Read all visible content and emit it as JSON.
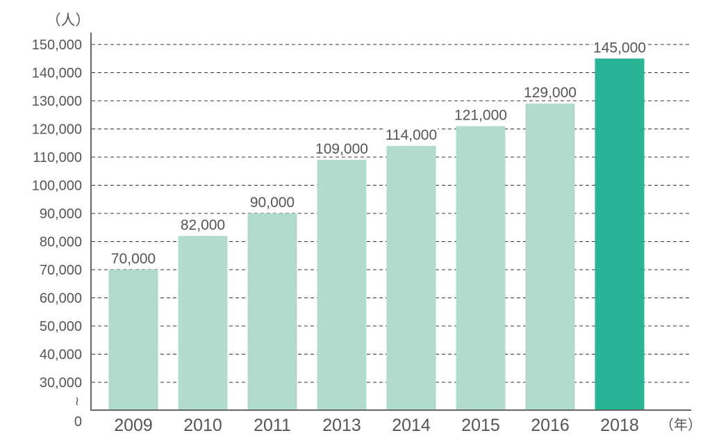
{
  "chart_data": {
    "type": "bar",
    "title": "",
    "ylabel": "（人）",
    "xlabel": "（年）",
    "categories": [
      "2009",
      "2010",
      "2011",
      "2013",
      "2014",
      "2015",
      "2016",
      "2018"
    ],
    "values": [
      70000,
      82000,
      90000,
      109000,
      114000,
      121000,
      129000,
      145000
    ],
    "data_labels": [
      "70,000",
      "82,000",
      "90,000",
      "109,000",
      "114,000",
      "121,000",
      "129,000",
      "145,000"
    ],
    "ylim": [
      0,
      150000
    ],
    "axis_break": {
      "from": 0,
      "to": 30000,
      "symbol": "≀"
    },
    "yticks": [
      0,
      30000,
      40000,
      50000,
      60000,
      70000,
      80000,
      90000,
      100000,
      110000,
      120000,
      130000,
      140000,
      150000
    ],
    "ytick_labels": [
      "0",
      "30,000",
      "40,000",
      "50,000",
      "60,000",
      "70,000",
      "80,000",
      "90,000",
      "100,000",
      "110,000",
      "120,000",
      "130,000",
      "140,000",
      "150,000"
    ],
    "grid": "horizontal dashed",
    "colors": {
      "default": "#b1dccb",
      "highlight": "#27b595",
      "highlight_category": "2018",
      "text": "#555555",
      "axis": "#666666"
    }
  }
}
